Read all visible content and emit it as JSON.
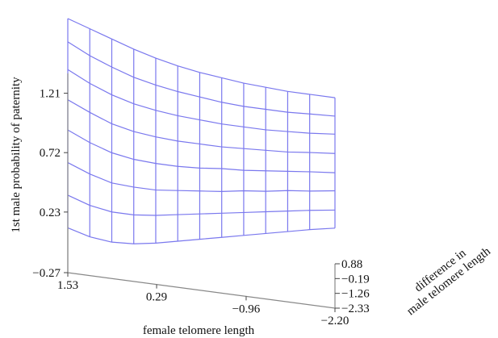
{
  "chart_data": {
    "type": "surface",
    "title": "",
    "zlabel": "1st male probability of paternity",
    "xlabel": "female telomere length",
    "ylabel_lines": [
      "difference in",
      "male telomere length"
    ],
    "z_ticks": [
      "1.21",
      "0.72",
      "0.23",
      "−0.27"
    ],
    "x_ticks": [
      "1.53",
      "0.29",
      "−0.96",
      "−2.20"
    ],
    "y_ticks": [
      "0.88",
      "−0.19",
      "−1.26",
      "−2.33"
    ],
    "z_tick_values": [
      1.21,
      0.72,
      0.23,
      -0.27
    ],
    "x_tick_values": [
      1.53,
      0.29,
      -0.96,
      -2.2
    ],
    "y_tick_values": [
      0.88,
      -0.19,
      -1.26,
      -2.33
    ],
    "xlim": [
      1.53,
      -2.2
    ],
    "ylim": [
      -2.33,
      0.88
    ],
    "zlim": [
      -0.27,
      1.46
    ],
    "grid_x": [
      1.53,
      1.223,
      0.916,
      0.609,
      0.302,
      -0.005,
      -0.312,
      -0.619,
      -0.926,
      -1.233,
      -1.54,
      -1.847,
      -2.2
    ],
    "grid_y": [
      -2.33,
      -1.9,
      -1.47,
      -1.04,
      -0.61,
      -0.18,
      0.25,
      0.88
    ],
    "z_values": [
      [
        0.1,
        0.05,
        0.03,
        0.04,
        0.07,
        0.11,
        0.15,
        0.19,
        0.23,
        0.27,
        0.31,
        0.35,
        0.39
      ],
      [
        0.32,
        0.26,
        0.23,
        0.23,
        0.25,
        0.28,
        0.31,
        0.34,
        0.37,
        0.4,
        0.43,
        0.46,
        0.49
      ],
      [
        0.54,
        0.47,
        0.42,
        0.41,
        0.41,
        0.43,
        0.45,
        0.47,
        0.5,
        0.52,
        0.55,
        0.57,
        0.6
      ],
      [
        0.76,
        0.68,
        0.62,
        0.59,
        0.58,
        0.58,
        0.59,
        0.61,
        0.62,
        0.64,
        0.66,
        0.68,
        0.7
      ],
      [
        0.96,
        0.88,
        0.81,
        0.77,
        0.75,
        0.74,
        0.74,
        0.74,
        0.75,
        0.76,
        0.77,
        0.79,
        0.81
      ],
      [
        1.16,
        1.07,
        1.0,
        0.95,
        0.92,
        0.9,
        0.89,
        0.88,
        0.88,
        0.88,
        0.89,
        0.9,
        0.92
      ],
      [
        1.34,
        1.25,
        1.18,
        1.12,
        1.08,
        1.05,
        1.03,
        1.01,
        1.0,
        1.0,
        1.0,
        1.01,
        1.02
      ],
      [
        1.46,
        1.4,
        1.34,
        1.28,
        1.23,
        1.19,
        1.16,
        1.14,
        1.12,
        1.11,
        1.1,
        1.1,
        1.1
      ]
    ],
    "mesh_color": "#7a78ee",
    "grid": false
  }
}
